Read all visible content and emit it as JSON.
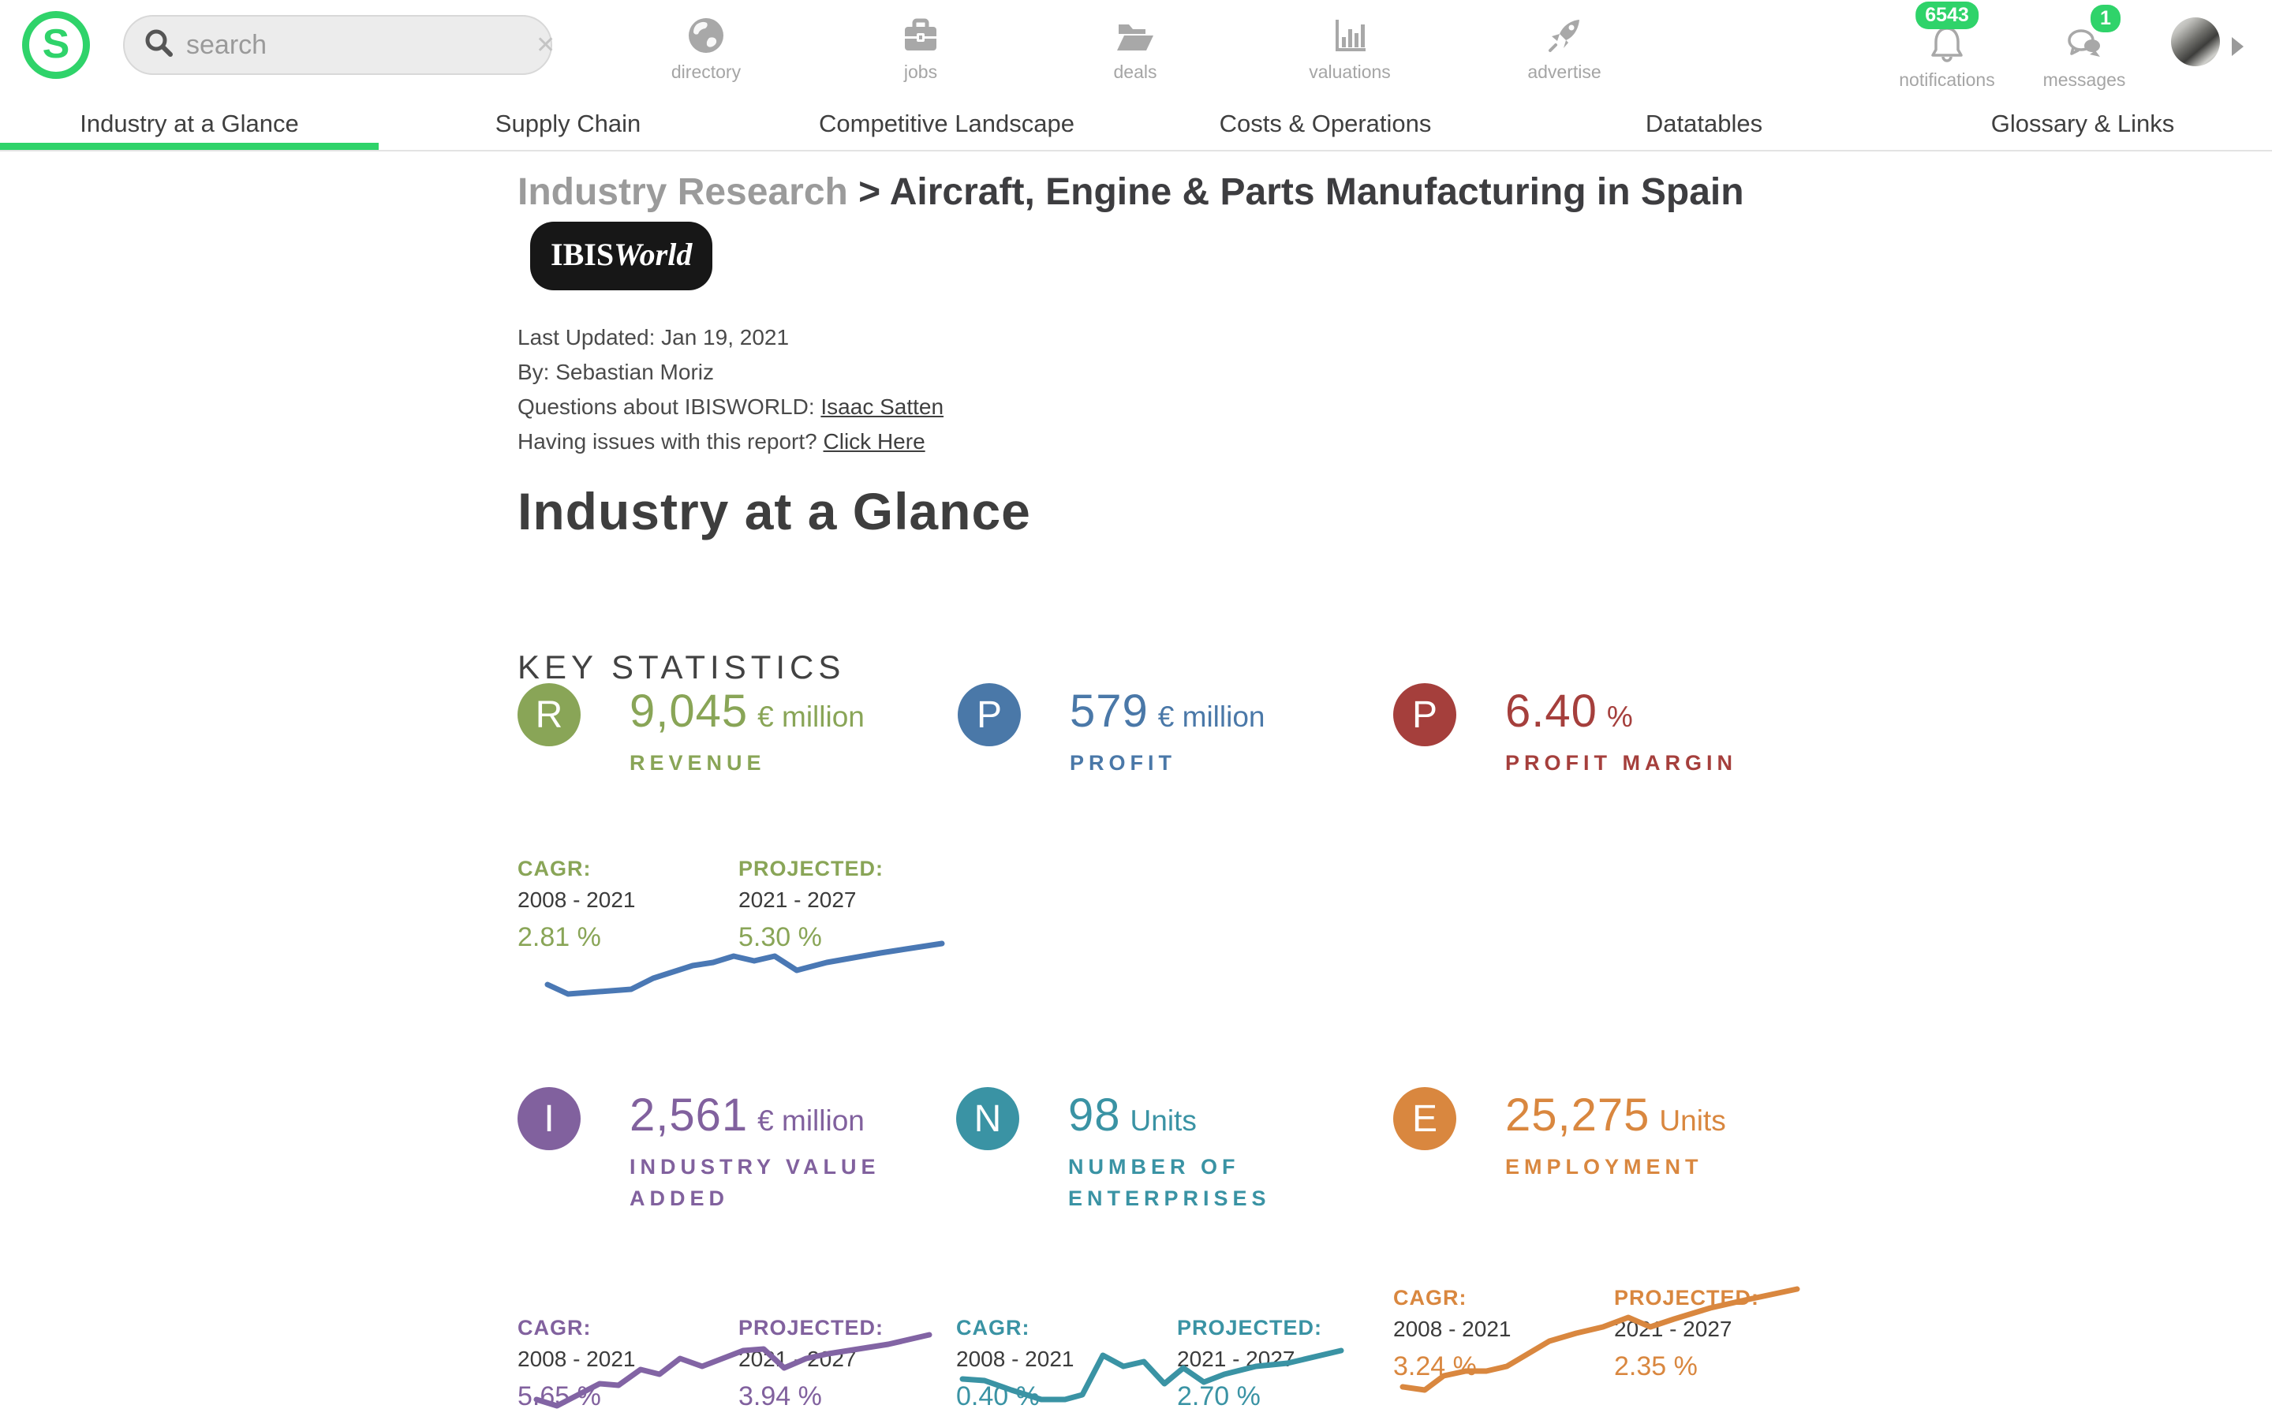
{
  "header": {
    "logo_letter": "S",
    "search": {
      "placeholder": "search",
      "clear": "✕"
    },
    "nav": [
      {
        "label": "directory"
      },
      {
        "label": "jobs"
      },
      {
        "label": "deals"
      },
      {
        "label": "valuations"
      },
      {
        "label": "advertise"
      }
    ],
    "notifications": {
      "label": "notifications",
      "badge": "6543"
    },
    "messages": {
      "label": "messages",
      "badge": "1"
    }
  },
  "tabs": [
    {
      "label": "Industry at a Glance",
      "active": true
    },
    {
      "label": "Supply Chain",
      "active": false
    },
    {
      "label": "Competitive Landscape",
      "active": false
    },
    {
      "label": "Costs & Operations",
      "active": false
    },
    {
      "label": "Datatables",
      "active": false
    },
    {
      "label": "Glossary & Links",
      "active": false
    }
  ],
  "report": {
    "breadcrumb": "Industry Research",
    "title_rest": " > Aircraft, Engine & Parts Manufacturing in Spain",
    "brand_bold": "IBIS",
    "brand_italic": "World",
    "meta_line1": "Last Updated: Jan 19, 2021",
    "meta_line2": "By: Sebastian Moriz",
    "meta_line3_prefix": "Questions about IBISWORLD: ",
    "meta_line3_link": "Isaac Satten",
    "meta_line4_prefix": "Having issues with this report? ",
    "meta_line4_link": "Click Here",
    "section_title": "Industry at a Glance",
    "subsection_title": "KEY STATISTICS"
  },
  "stats": [
    {
      "letter": "R",
      "value": "9,045",
      "unit": "€ million",
      "label": "REVENUE",
      "color": "#89a557",
      "cagr_label": "CAGR:",
      "cagr_years": "2008 - 2021",
      "cagr_value": "2.81 %",
      "projected_label": "PROJECTED:",
      "projected_years": "2021 - 2027",
      "projected_value": "5.30 %"
    },
    {
      "letter": "P",
      "value": "579",
      "unit": "€ million",
      "label": "PROFIT",
      "color": "#4a78a8"
    },
    {
      "letter": "P",
      "value": "6.40",
      "unit": "%",
      "label": "PROFIT MARGIN",
      "color": "#a53f3c"
    },
    {
      "letter": "I",
      "value": "2,561",
      "unit": "€ million",
      "label": "INDUSTRY VALUE ADDED",
      "color": "#81619e",
      "cagr_label": "CAGR:",
      "cagr_years": "2008 - 2021",
      "cagr_value": "5.65 %",
      "projected_label": "PROJECTED:",
      "projected_years": "2021 - 2027",
      "projected_value": "3.94 %"
    },
    {
      "letter": "N",
      "value": "98",
      "unit": "Units",
      "label": "NUMBER OF ENTERPRISES",
      "color": "#3a93a4",
      "cagr_label": "CAGR:",
      "cagr_years": "2008 - 2021",
      "cagr_value": "0.40 %",
      "projected_label": "PROJECTED:",
      "projected_years": "2021 - 2027",
      "projected_value": "2.70 %"
    },
    {
      "letter": "E",
      "value": "25,275",
      "unit": "Units",
      "label": "EMPLOYMENT",
      "color": "#d9873f",
      "cagr_label": "CAGR:",
      "cagr_years": "2008 - 2021",
      "cagr_value": "3.24 %",
      "projected_label": "PROJECTED:",
      "projected_years": "2021 - 2027",
      "projected_value": "2.35 %"
    }
  ],
  "sparklines": {
    "revenue": {
      "color": "#4a78b4",
      "points": [
        [
          24,
          76
        ],
        [
          50,
          88
        ],
        [
          130,
          82
        ],
        [
          158,
          68
        ],
        [
          208,
          52
        ],
        [
          234,
          48
        ],
        [
          260,
          40
        ],
        [
          286,
          46
        ],
        [
          312,
          40
        ],
        [
          340,
          58
        ],
        [
          378,
          48
        ],
        [
          412,
          42
        ],
        [
          446,
          36
        ],
        [
          524,
          24
        ]
      ]
    },
    "industry_value_added": {
      "color": "#8264a4",
      "points": [
        [
          24,
          98
        ],
        [
          50,
          106
        ],
        [
          104,
          78
        ],
        [
          128,
          80
        ],
        [
          156,
          60
        ],
        [
          180,
          66
        ],
        [
          206,
          46
        ],
        [
          234,
          56
        ],
        [
          286,
          36
        ],
        [
          312,
          34
        ],
        [
          338,
          58
        ],
        [
          366,
          46
        ],
        [
          394,
          40
        ],
        [
          470,
          28
        ],
        [
          522,
          16
        ]
      ]
    },
    "number_of_enterprises": {
      "color": "#3a93a4",
      "points": [
        [
          8,
          58
        ],
        [
          36,
          60
        ],
        [
          70,
          72
        ],
        [
          108,
          84
        ],
        [
          138,
          84
        ],
        [
          160,
          78
        ],
        [
          186,
          28
        ],
        [
          212,
          42
        ],
        [
          238,
          36
        ],
        [
          264,
          64
        ],
        [
          288,
          44
        ],
        [
          314,
          62
        ],
        [
          340,
          52
        ],
        [
          380,
          42
        ],
        [
          420,
          38
        ],
        [
          488,
          22
        ]
      ]
    },
    "employment": {
      "color": "#d9873f",
      "points": [
        [
          18,
          128
        ],
        [
          46,
          132
        ],
        [
          70,
          114
        ],
        [
          98,
          108
        ],
        [
          124,
          108
        ],
        [
          150,
          102
        ],
        [
          204,
          70
        ],
        [
          238,
          60
        ],
        [
          272,
          52
        ],
        [
          304,
          40
        ],
        [
          332,
          52
        ],
        [
          362,
          42
        ],
        [
          408,
          28
        ],
        [
          452,
          18
        ],
        [
          518,
          4
        ]
      ]
    }
  },
  "colors": {
    "accent_green": "#2fd36a",
    "nav_gray": "#a8a8a8",
    "text_dark": "#3d3d40",
    "text_gray": "#9b9b9b"
  }
}
